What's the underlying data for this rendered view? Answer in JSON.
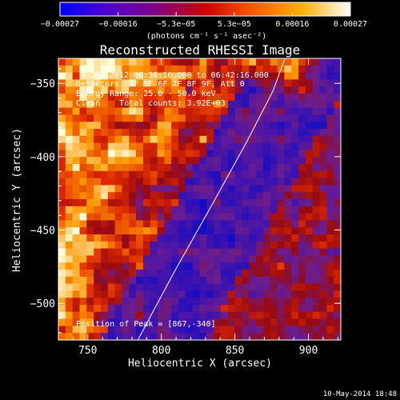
{
  "chart_data": {
    "type": "heatmap",
    "title": "Reconstructed RHESSI Image",
    "xlabel": "Heliocentric X (arcsec)",
    "ylabel": "Heliocentric Y (arcsec)",
    "xlim": [
      730,
      922
    ],
    "ylim": [
      -525,
      -333
    ],
    "x_ticks": [
      750,
      800,
      850,
      900
    ],
    "y_ticks": [
      -350,
      -400,
      -450,
      -500
    ],
    "x_tick_labels": [
      "750",
      "800",
      "850",
      "900"
    ],
    "y_tick_labels": [
      "−350",
      "−400",
      "−450",
      "−500"
    ],
    "colorbar": {
      "range": [
        -0.00027,
        0.00027
      ],
      "tick_labels": [
        "−0.00027",
        "−0.00016",
        "−5.3e−05",
        "5.3e−05",
        "0.00016",
        "0.00027"
      ],
      "units": "(photons cm⁻² s⁻¹ asec⁻²)",
      "colors": [
        "#0000ff",
        "#5000cc",
        "#800080",
        "#cc0000",
        "#ff5a00",
        "#ffb000",
        "#ffffff"
      ]
    },
    "annotations": {
      "time_range": "3-Jun-2012 06:38:16.000 to 06:42:16.000",
      "detectors": "Detectors: 3F 5F 6F 7F 8F 9F, Att 0",
      "energy": "Energy Range: 25.0 - 50.0 keV",
      "clean": "Clean    Total counts: 3.92E+03",
      "peak": "Position of Peak = [867,-340]"
    },
    "limb_line": [
      [
        784,
        -525
      ],
      [
        808,
        -480
      ],
      [
        836,
        -430
      ],
      [
        858,
        -390
      ],
      [
        876,
        -355
      ],
      [
        884,
        -333
      ]
    ],
    "peak": [
      867,
      -340
    ]
  },
  "footer": {
    "date": "10-May-2014 18:48"
  }
}
